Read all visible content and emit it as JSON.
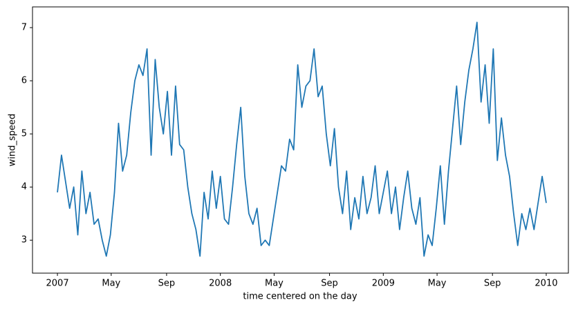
{
  "chart_data": {
    "type": "line",
    "xlabel": "time centered on the day",
    "ylabel": "wind_speed",
    "color": "#1f77b4",
    "x": [
      2007.0,
      2007.025,
      2007.05,
      2007.075,
      2007.1,
      2007.125,
      2007.15,
      2007.175,
      2007.2,
      2007.225,
      2007.25,
      2007.275,
      2007.3,
      2007.325,
      2007.35,
      2007.375,
      2007.4,
      2007.425,
      2007.45,
      2007.475,
      2007.5,
      2007.525,
      2007.55,
      2007.575,
      2007.6,
      2007.625,
      2007.65,
      2007.675,
      2007.7,
      2007.725,
      2007.75,
      2007.775,
      2007.8,
      2007.825,
      2007.85,
      2007.875,
      2007.9,
      2007.925,
      2007.95,
      2007.975,
      2008.0,
      2008.025,
      2008.05,
      2008.075,
      2008.1,
      2008.125,
      2008.15,
      2008.175,
      2008.2,
      2008.225,
      2008.25,
      2008.275,
      2008.3,
      2008.325,
      2008.35,
      2008.375,
      2008.4,
      2008.425,
      2008.45,
      2008.475,
      2008.5,
      2008.525,
      2008.55,
      2008.575,
      2008.6,
      2008.625,
      2008.65,
      2008.675,
      2008.7,
      2008.725,
      2008.75,
      2008.775,
      2008.8,
      2008.825,
      2008.85,
      2008.875,
      2008.9,
      2008.925,
      2008.95,
      2008.975,
      2009.0,
      2009.025,
      2009.05,
      2009.075,
      2009.1,
      2009.125,
      2009.15,
      2009.175,
      2009.2,
      2009.225,
      2009.25,
      2009.275,
      2009.3,
      2009.325,
      2009.35,
      2009.375,
      2009.4,
      2009.425,
      2009.45,
      2009.475,
      2009.5,
      2009.525,
      2009.55,
      2009.575,
      2009.6,
      2009.625,
      2009.65,
      2009.675,
      2009.7,
      2009.725,
      2009.75,
      2009.775,
      2009.8,
      2009.825,
      2009.85,
      2009.875,
      2009.9,
      2009.925,
      2009.95,
      2009.975,
      2010.0
    ],
    "values": [
      3.9,
      4.6,
      4.1,
      3.6,
      4.0,
      3.1,
      4.3,
      3.5,
      3.9,
      3.3,
      3.4,
      3.0,
      2.7,
      3.1,
      3.9,
      5.2,
      4.3,
      4.6,
      5.4,
      6.0,
      6.3,
      6.1,
      6.6,
      4.6,
      6.4,
      5.5,
      5.0,
      5.8,
      4.6,
      5.9,
      4.8,
      4.7,
      4.0,
      3.5,
      3.2,
      2.7,
      3.9,
      3.4,
      4.3,
      3.6,
      4.2,
      3.4,
      3.3,
      4.0,
      4.8,
      5.5,
      4.2,
      3.5,
      3.3,
      3.6,
      2.9,
      3.0,
      2.9,
      3.4,
      3.9,
      4.4,
      4.3,
      4.9,
      4.7,
      6.3,
      5.5,
      5.9,
      6.0,
      6.6,
      5.7,
      5.9,
      5.0,
      4.4,
      5.1,
      4.0,
      3.5,
      4.3,
      3.2,
      3.8,
      3.4,
      4.2,
      3.5,
      3.8,
      4.4,
      3.5,
      3.9,
      4.3,
      3.5,
      4.0,
      3.2,
      3.8,
      4.3,
      3.6,
      3.3,
      3.8,
      2.7,
      3.1,
      2.9,
      3.6,
      4.4,
      3.3,
      4.3,
      5.1,
      5.9,
      4.8,
      5.6,
      6.2,
      6.6,
      7.1,
      5.6,
      6.3,
      5.2,
      6.6,
      4.5,
      5.3,
      4.6,
      4.2,
      3.5,
      2.9,
      3.5,
      3.2,
      3.6,
      3.2,
      3.7,
      4.2,
      3.7
    ],
    "xlim": [
      2006.847,
      2010.136
    ],
    "xticks": [
      2007,
      {
        "value": 2007.33,
        "label": "May"
      },
      {
        "value": 2007.67,
        "label": "Sep"
      },
      2008,
      {
        "value": 2008.33,
        "label": "May"
      },
      {
        "value": 2008.67,
        "label": "Sep"
      },
      2009,
      {
        "value": 2009.33,
        "label": "May"
      },
      {
        "value": 2009.67,
        "label": "Sep"
      },
      2010
    ],
    "ylim": [
      2.38,
      7.39
    ],
    "yticks": [
      3,
      4,
      5,
      6,
      7
    ],
    "grid": false
  }
}
